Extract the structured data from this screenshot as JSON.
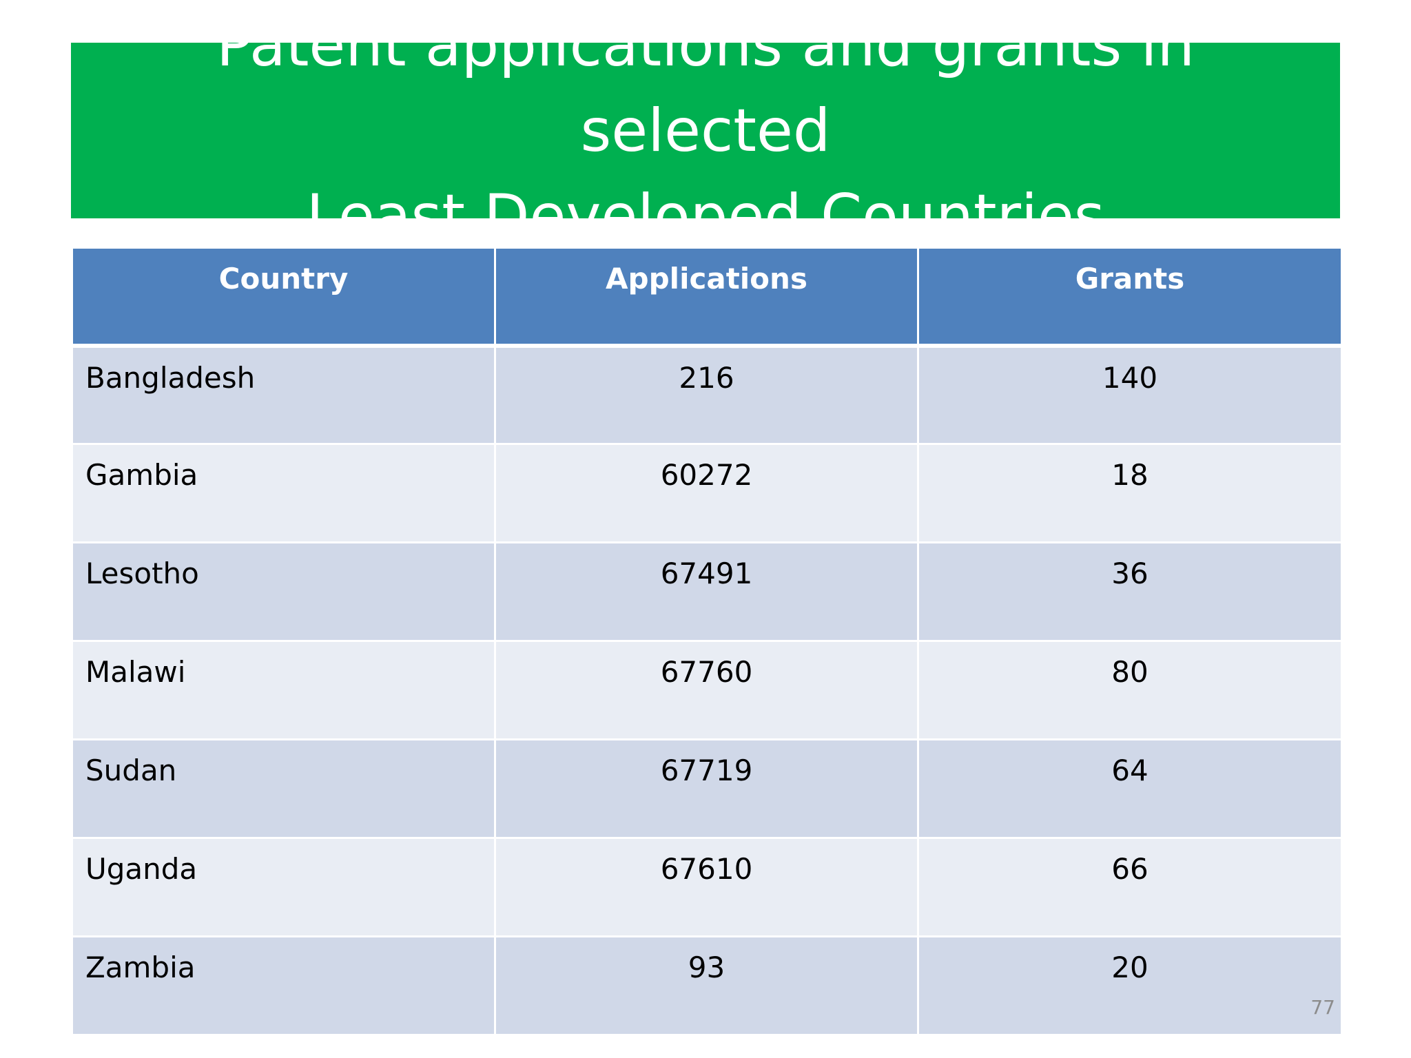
{
  "slide": {
    "title_line1": "Patent applications and grants in selected",
    "title_line2": "Least Developed Countries",
    "page_number": "77"
  },
  "table": {
    "headers": [
      "Country",
      "Applications",
      "Grants"
    ],
    "rows": [
      {
        "country": "Bangladesh",
        "applications": "216",
        "grants": "140"
      },
      {
        "country": "Gambia",
        "applications": "60272",
        "grants": "18"
      },
      {
        "country": "Lesotho",
        "applications": "67491",
        "grants": "36"
      },
      {
        "country": "Malawi",
        "applications": "67760",
        "grants": "80"
      },
      {
        "country": "Sudan",
        "applications": "67719",
        "grants": "64"
      },
      {
        "country": "Uganda",
        "applications": "67610",
        "grants": "66"
      },
      {
        "country": "Zambia",
        "applications": "93",
        "grants": "20"
      }
    ]
  },
  "colors": {
    "title_background": "#00b050",
    "header_background": "#4f81bd",
    "row_band_dark": "#d0d8e8",
    "row_band_light": "#e9edf4"
  }
}
